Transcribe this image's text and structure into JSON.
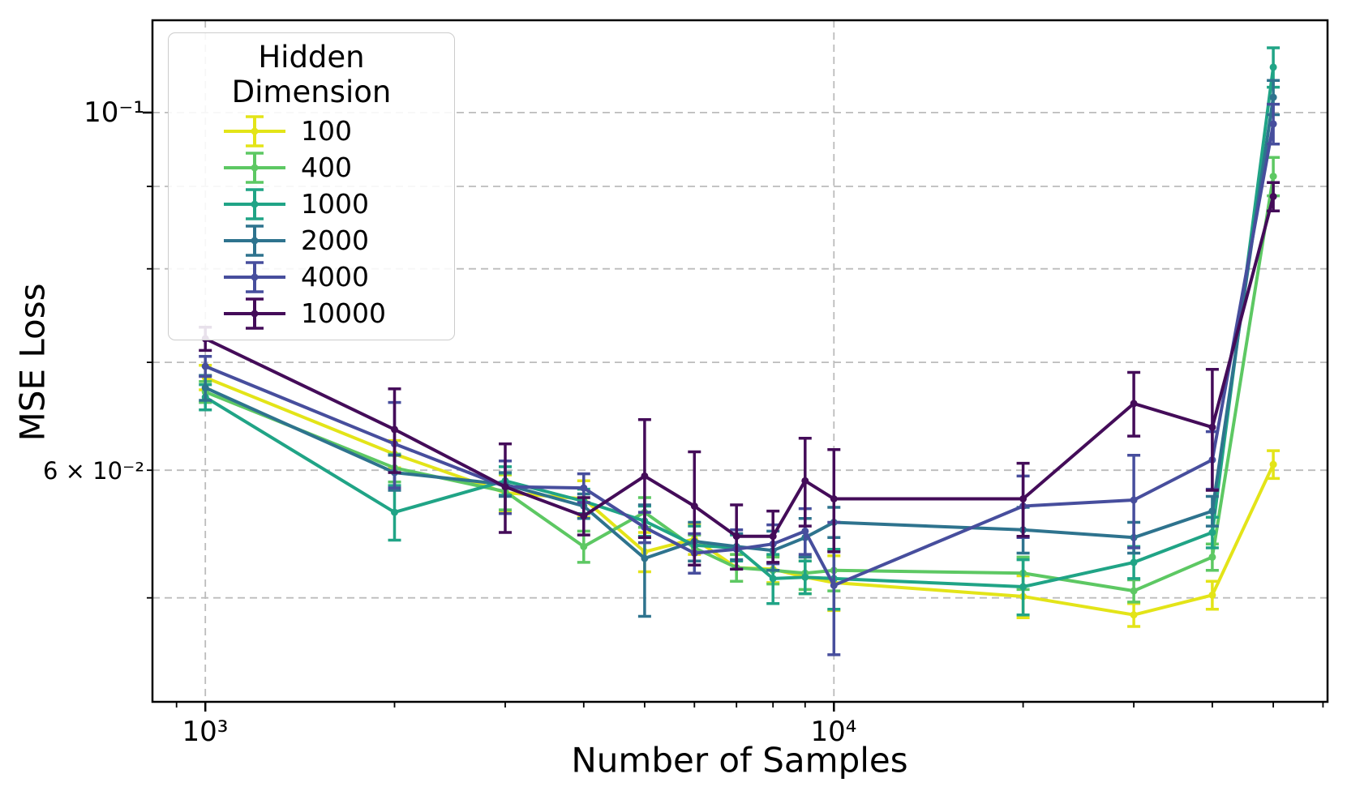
{
  "chart_data": {
    "type": "line",
    "title": "",
    "xlabel": "Number of Samples",
    "ylabel": "MSE Loss",
    "xscale": "log",
    "yscale": "log",
    "xlim": [
      824,
      61000
    ],
    "ylim": [
      0.0431,
      0.1141
    ],
    "grid": true,
    "legend_title": "Hidden Dimension",
    "legend_position": "upper left",
    "x": [
      1000,
      2000,
      3000,
      4000,
      5000,
      6000,
      7000,
      8000,
      9000,
      10000,
      20000,
      30000,
      40000,
      50000
    ],
    "series": [
      {
        "name": "100",
        "color": "#e3e418",
        "values": [
          0.0685,
          0.0614,
          0.0581,
          0.0576,
          0.0534,
          0.0544,
          0.0522,
          0.0521,
          0.0515,
          0.0511,
          0.0501,
          0.0488,
          0.0502,
          0.0605
        ],
        "err": [
          0.0012,
          0.0012,
          0.0015,
          0.0015,
          0.0015,
          0.0012,
          0.001,
          0.001,
          0.0012,
          0.002,
          0.0015,
          0.0008,
          0.001,
          0.0012
        ]
      },
      {
        "name": "400",
        "color": "#5dc863",
        "values": [
          0.0671,
          0.0602,
          0.0582,
          0.0538,
          0.0565,
          0.0537,
          0.0522,
          0.052,
          0.0518,
          0.052,
          0.0518,
          0.0505,
          0.053,
          0.0913
        ],
        "err": [
          0.001,
          0.0012,
          0.0015,
          0.0012,
          0.0012,
          0.001,
          0.001,
          0.001,
          0.0012,
          0.0015,
          0.0012,
          0.0008,
          0.001,
          0.0025
        ]
      },
      {
        "name": "1000",
        "color": "#20a486",
        "values": [
          0.0666,
          0.0565,
          0.0591,
          0.0574,
          0.0558,
          0.0539,
          0.0537,
          0.0514,
          0.0515,
          0.0514,
          0.0508,
          0.0526,
          0.0549,
          0.1067
        ],
        "err": [
          0.0012,
          0.0022,
          0.0012,
          0.001,
          0.0012,
          0.0015,
          0.001,
          0.0018,
          0.0012,
          0.0022,
          0.002,
          0.0012,
          0.0012,
          0.003
        ]
      },
      {
        "name": "2000",
        "color": "#2e738e",
        "values": [
          0.0675,
          0.0598,
          0.0588,
          0.057,
          0.0529,
          0.0542,
          0.0538,
          0.0535,
          0.0545,
          0.0557,
          0.0551,
          0.0545,
          0.0566,
          0.1022
        ],
        "err": [
          0.0012,
          0.0015,
          0.001,
          0.001,
          0.0042,
          0.0015,
          0.001,
          0.0015,
          0.0015,
          0.0012,
          0.0018,
          0.0012,
          0.0012,
          0.0025
        ]
      },
      {
        "name": "4000",
        "color": "#474e9d",
        "values": [
          0.0696,
          0.0623,
          0.0586,
          0.0585,
          0.0553,
          0.0533,
          0.0536,
          0.054,
          0.055,
          0.0509,
          0.057,
          0.0575,
          0.0609,
          0.0984
        ],
        "err": [
          0.001,
          0.0038,
          0.0022,
          0.0012,
          0.0012,
          0.0015,
          0.0015,
          0.0015,
          0.0018,
          0.0048,
          0.0025,
          0.0038,
          0.0025,
          0.0028
        ]
      },
      {
        "name": "10000",
        "color": "#440c59",
        "values": [
          0.0724,
          0.0636,
          0.0586,
          0.0562,
          0.0595,
          0.057,
          0.0546,
          0.0546,
          0.0591,
          0.0576,
          0.0576,
          0.066,
          0.0638,
          0.0887
        ],
        "err": [
          0.0012,
          0.0038,
          0.0037,
          0.0015,
          0.005,
          0.0046,
          0.0025,
          0.002,
          0.0037,
          0.0042,
          0.003,
          0.003,
          0.0055,
          0.0018
        ]
      }
    ],
    "x_ticks": {
      "major": [
        1000,
        10000
      ],
      "major_labels": [
        "10³",
        "10⁴"
      ],
      "minor": [
        900,
        2000,
        3000,
        4000,
        5000,
        6000,
        7000,
        8000,
        9000,
        20000,
        30000,
        40000,
        50000,
        60000
      ]
    },
    "y_ticks": {
      "major": [
        0.1
      ],
      "major_labels": [
        "10⁻¹"
      ],
      "minor": [
        0.05,
        0.06,
        0.07,
        0.08,
        0.09
      ],
      "minor_labeled_value": 0.06,
      "minor_labeled_label": "6 × 10⁻²"
    },
    "gridlines": {
      "x": [
        1000,
        10000
      ],
      "y": [
        0.05,
        0.06,
        0.07,
        0.08,
        0.09,
        0.1
      ]
    }
  }
}
